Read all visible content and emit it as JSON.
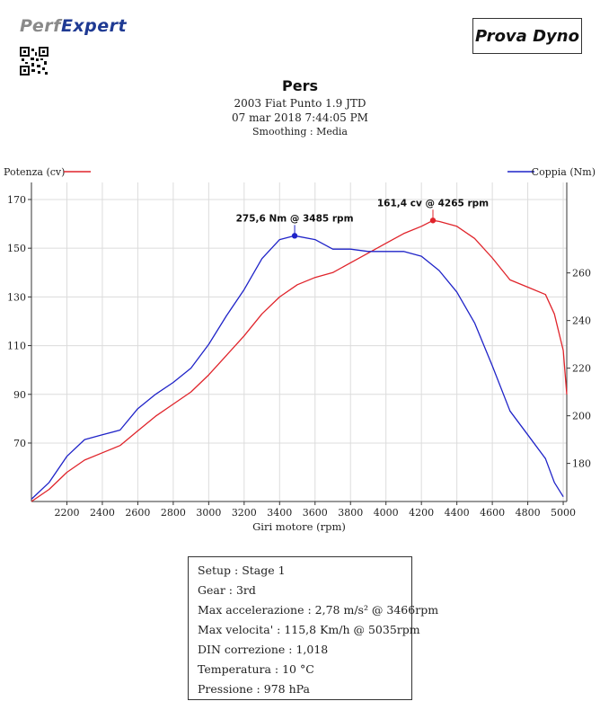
{
  "brand": {
    "part1": "Perf",
    "part2": "Expert"
  },
  "badge": "Prova Dyno",
  "header": {
    "title": "Pers",
    "vehicle": "2003 Fiat Punto 1.9 JTD",
    "datetime": "07 mar 2018 7:44:05 PM",
    "smoothing": "Smoothing : Media"
  },
  "colors": {
    "power": "#e0242b",
    "torque": "#1f23c8"
  },
  "chart_data": {
    "type": "line",
    "xlabel": "Giri motore (rpm)",
    "xlim": [
      2000,
      5020
    ],
    "x_ticks": [
      "2200",
      "2400",
      "2600",
      "2800",
      "3000",
      "3200",
      "3400",
      "3600",
      "3800",
      "4000",
      "4200",
      "4400",
      "4600",
      "4800",
      "5000"
    ],
    "y_left_label": "Potenza (cv)",
    "y_left_lim": [
      46,
      177
    ],
    "y_left_ticks": [
      "70",
      "90",
      "110",
      "130",
      "150",
      "170"
    ],
    "y_right_label": "Coppia (Nm)",
    "y_right_lim": [
      164,
      298
    ],
    "y_right_ticks": [
      "180",
      "200",
      "220",
      "240",
      "260"
    ],
    "grid": true,
    "legend_placement": "top",
    "series": [
      {
        "name": "Potenza (cv)",
        "axis": "left",
        "x": [
          2000,
          2100,
          2200,
          2300,
          2400,
          2500,
          2600,
          2700,
          2800,
          2900,
          3000,
          3100,
          3200,
          3300,
          3400,
          3500,
          3600,
          3700,
          3800,
          3900,
          4000,
          4100,
          4200,
          4265,
          4300,
          4400,
          4500,
          4600,
          4700,
          4800,
          4900,
          4950,
          5000,
          5020
        ],
        "values": [
          46,
          51,
          58,
          63,
          66,
          69,
          75,
          81,
          86,
          91,
          98,
          106,
          114,
          123,
          130,
          135,
          138,
          140,
          144,
          148,
          152,
          156,
          159,
          161.4,
          161,
          159,
          154,
          146,
          137,
          134,
          131,
          123,
          108,
          90
        ]
      },
      {
        "name": "Coppia (Nm)",
        "axis": "right",
        "x": [
          2000,
          2100,
          2200,
          2300,
          2400,
          2500,
          2600,
          2700,
          2800,
          2900,
          3000,
          3100,
          3200,
          3300,
          3400,
          3485,
          3600,
          3700,
          3800,
          3900,
          4000,
          4100,
          4200,
          4300,
          4400,
          4500,
          4600,
          4700,
          4800,
          4900,
          4950,
          5000
        ],
        "values": [
          165,
          172,
          183,
          190,
          192,
          194,
          203,
          209,
          214,
          220,
          230,
          242,
          253,
          266,
          274,
          275.6,
          274,
          270,
          270,
          269,
          269,
          269,
          267,
          261,
          252,
          239,
          221,
          202,
          192,
          182,
          172,
          166
        ]
      }
    ],
    "annotations": [
      {
        "text": "161,4 cv @ 4265 rpm",
        "series": 0,
        "x": 4265,
        "y": 161.4
      },
      {
        "text": "275,6 Nm @ 3485 rpm",
        "series": 1,
        "x": 3485,
        "y": 275.6
      }
    ]
  },
  "info": [
    "Setup : Stage 1",
    "Gear : 3rd",
    "Max accelerazione : 2,78 m/s² @ 3466rpm",
    "Max velocita' : 115,8 Km/h @ 5035rpm",
    "DIN correzione : 1,018",
    "Temperatura : 10 °C",
    "Pressione : 978 hPa"
  ]
}
